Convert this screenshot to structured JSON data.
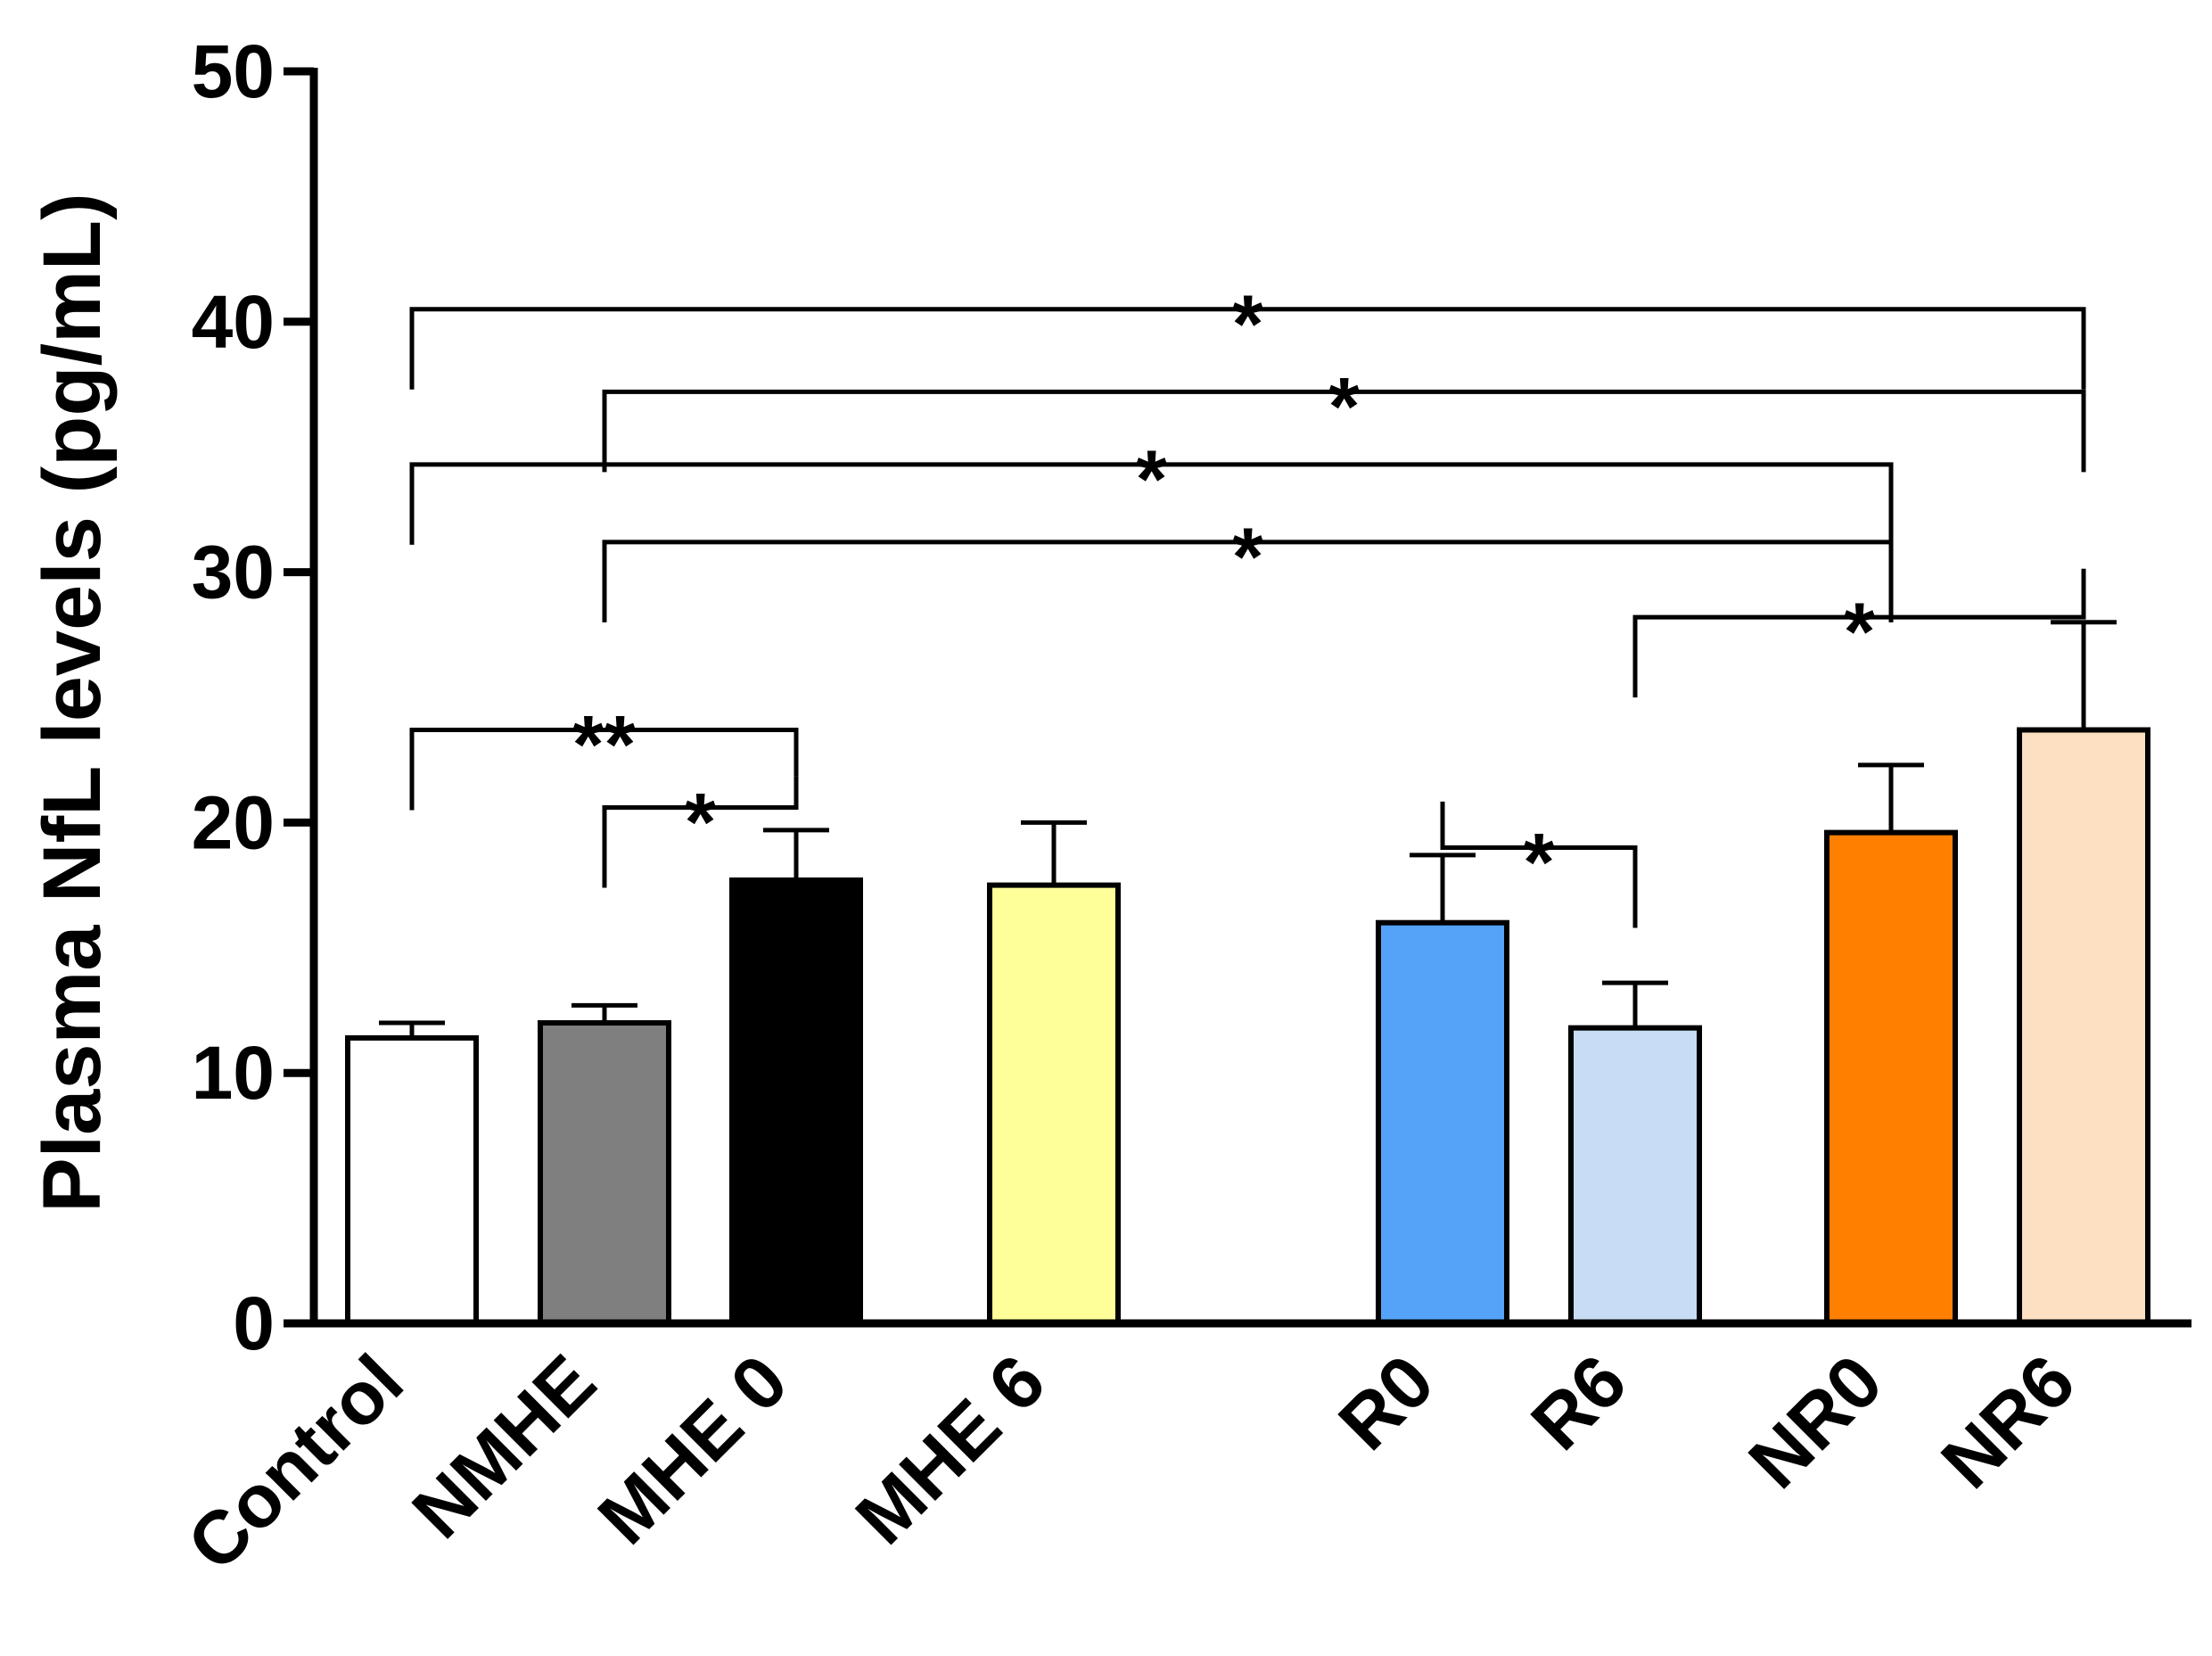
{
  "chart_data": {
    "type": "bar",
    "title": "",
    "xlabel": "",
    "ylabel": "Plasma NfL levels (pg/mL)",
    "ylim": [
      0,
      50
    ],
    "yticks": [
      0,
      10,
      20,
      30,
      40,
      50
    ],
    "grid": false,
    "legend": "none",
    "categories": [
      "Control",
      "NMHE",
      "MHE 0",
      "MHE 6",
      "R0",
      "R6",
      "NR0",
      "NR6"
    ],
    "values": [
      11.4,
      12.0,
      17.7,
      17.5,
      16.0,
      11.8,
      19.6,
      23.7
    ],
    "errors": [
      0.6,
      0.7,
      2.0,
      2.5,
      2.7,
      1.8,
      2.7,
      4.3
    ],
    "colors": [
      "#ffffff",
      "#7f7f7f",
      "#000000",
      "#ffff99",
      "#55a3f8",
      "#c9dcf5",
      "#ff8000",
      "#fde0c2"
    ],
    "significance": [
      {
        "from": "Control",
        "to": "NR6",
        "label": "*",
        "y": 40.5
      },
      {
        "from": "NMHE",
        "to": "NR6",
        "label": "*",
        "y": 37.2
      },
      {
        "from": "Control",
        "to": "NR0",
        "label": "*",
        "y": 34.3
      },
      {
        "from": "NMHE",
        "to": "NR0",
        "label": "*",
        "y": 31.2
      },
      {
        "from": "R6",
        "to": "NR6",
        "label": "*",
        "y": 28.2
      },
      {
        "from": "Control",
        "to": "MHE 0",
        "label": "**",
        "y": 23.7
      },
      {
        "from": "NMHE",
        "to": "MHE 0",
        "label": "*",
        "y": 20.6
      },
      {
        "from": "R0",
        "to": "R6",
        "label": "*",
        "y": 19.0
      }
    ]
  }
}
